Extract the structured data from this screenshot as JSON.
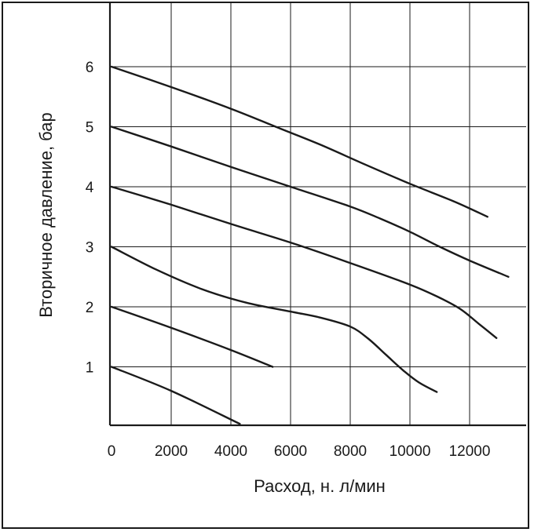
{
  "chart_data": {
    "type": "line",
    "title": "",
    "xlabel": "Расход, н. л/мин",
    "ylabel": "Вторичное давление, бар",
    "xlim": [
      0,
      13600
    ],
    "ylim": [
      0,
      7
    ],
    "x_ticks": [
      "0",
      "2000",
      "4000",
      "6000",
      "8000",
      "10000",
      "12000"
    ],
    "y_ticks": [
      "1",
      "2",
      "3",
      "4",
      "5",
      "6"
    ],
    "grid": true,
    "legend": "none",
    "series": [
      {
        "x": [
          0,
          2000,
          4300
        ],
        "y": [
          1.0,
          0.6,
          0.05
        ]
      },
      {
        "x": [
          0,
          2000,
          4000,
          5400
        ],
        "y": [
          2.0,
          1.65,
          1.28,
          1.0
        ]
      },
      {
        "x": [
          0,
          1500,
          3000,
          4500,
          6000,
          7000,
          8000,
          8600,
          9200,
          9800,
          10300,
          10900
        ],
        "y": [
          3.0,
          2.62,
          2.3,
          2.07,
          1.92,
          1.82,
          1.67,
          1.47,
          1.2,
          0.93,
          0.74,
          0.58
        ]
      },
      {
        "x": [
          0,
          2000,
          4000,
          6000,
          8000,
          10000,
          11000,
          11700,
          12300,
          12900
        ],
        "y": [
          4.0,
          3.7,
          3.38,
          3.07,
          2.73,
          2.37,
          2.15,
          1.96,
          1.72,
          1.48
        ]
      },
      {
        "x": [
          0,
          2000,
          4000,
          6000,
          8000,
          9000,
          10000,
          11000,
          12000,
          13300
        ],
        "y": [
          5.0,
          4.67,
          4.33,
          4.0,
          3.67,
          3.47,
          3.25,
          3.0,
          2.77,
          2.5
        ]
      },
      {
        "x": [
          0,
          2000,
          4000,
          5500,
          7000,
          8500,
          10000,
          11500,
          12600
        ],
        "y": [
          6.0,
          5.66,
          5.3,
          5.0,
          4.7,
          4.37,
          4.05,
          3.75,
          3.5
        ]
      }
    ]
  }
}
